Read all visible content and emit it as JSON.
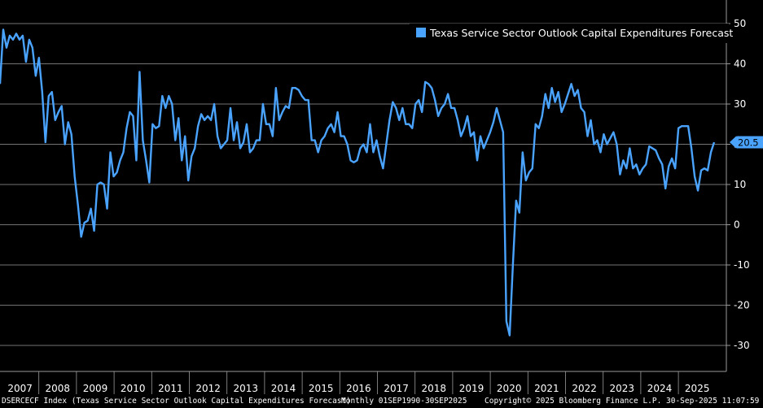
{
  "chart_data": {
    "type": "line",
    "title": "",
    "legend": {
      "label": "Texas Service Sector Outlook Capital Expenditures Forecast",
      "position": "top-right"
    },
    "last_value_label": "20.5",
    "ylim": [
      -35,
      55
    ],
    "y_ticks": [
      50,
      40,
      30,
      20,
      10,
      0,
      -10,
      -20,
      -30
    ],
    "x_tick_labels": [
      "2007",
      "2008",
      "2009",
      "2010",
      "2011",
      "2012",
      "2013",
      "2014",
      "2015",
      "2016",
      "2017",
      "2018",
      "2019",
      "2020",
      "2021",
      "2022",
      "2023",
      "2024",
      "2025"
    ],
    "grid": true,
    "colors": {
      "line": "#4aa3ff",
      "background": "#000000",
      "grid": "#9a9a9a",
      "label_box": "#4aa3ff"
    },
    "series": [
      {
        "values": [
          35,
          48.5,
          44,
          47,
          46,
          47.5,
          46,
          47,
          40.5,
          46,
          44,
          37,
          41.5,
          33,
          20.5,
          32,
          33,
          26,
          28,
          29.5,
          20,
          25.5,
          22.5,
          12,
          5,
          -3,
          0.5,
          1,
          4,
          -1.5,
          10,
          10.5,
          10,
          4,
          18,
          12,
          13,
          16,
          18,
          24,
          28,
          27,
          16,
          38,
          21,
          16,
          10.5,
          25,
          24,
          24.5,
          32,
          29,
          32,
          30,
          21,
          26.5,
          16,
          22,
          11,
          17,
          19,
          24.5,
          27.5,
          26,
          27,
          26,
          30,
          22,
          19,
          20,
          21,
          29,
          21,
          25.5,
          19,
          20.5,
          25,
          18,
          19,
          21,
          21,
          30,
          25,
          25,
          22,
          34,
          26,
          28,
          29.5,
          29,
          34,
          34,
          33.5,
          32,
          31,
          31,
          21,
          21,
          18,
          21,
          22,
          24,
          25,
          23,
          28,
          22,
          22,
          20,
          16,
          15.5,
          16,
          19,
          20,
          18,
          25,
          18,
          21,
          17,
          14,
          20,
          26,
          30.5,
          29,
          26,
          29,
          25,
          25,
          24,
          30,
          31,
          28,
          35.5,
          35,
          34,
          31,
          27,
          29,
          30,
          32.5,
          29,
          29,
          26,
          22,
          24,
          27,
          22,
          23,
          16,
          22,
          19,
          21,
          23,
          25.5,
          29,
          26,
          23,
          -24,
          -27.5,
          -10,
          6,
          3,
          18,
          11,
          13,
          14,
          25,
          24,
          27,
          32.5,
          29,
          34,
          30.5,
          33,
          28,
          30,
          32.5,
          35,
          32,
          33.5,
          29,
          28,
          22,
          26,
          20,
          21,
          18,
          22.5,
          20,
          21.5,
          23,
          20,
          12.5,
          16,
          14,
          19,
          14,
          15,
          12.5,
          14,
          15,
          19.5,
          19,
          18.5,
          16.5,
          15,
          9,
          14.5,
          16.5,
          14,
          24,
          24.5,
          24.5,
          24.5,
          19,
          12,
          8.5,
          13.5,
          14,
          13.5,
          18,
          20.5
        ]
      }
    ]
  },
  "footer": {
    "index": "DSERCECF Index (Texas Service Sector Outlook Capital Expenditures Forecast)",
    "range": "Monthly 01SEP1990-30SEP2025",
    "copyright": "Copyright© 2025 Bloomberg Finance L.P.",
    "timestamp": "30-Sep-2025 11:07:59"
  }
}
